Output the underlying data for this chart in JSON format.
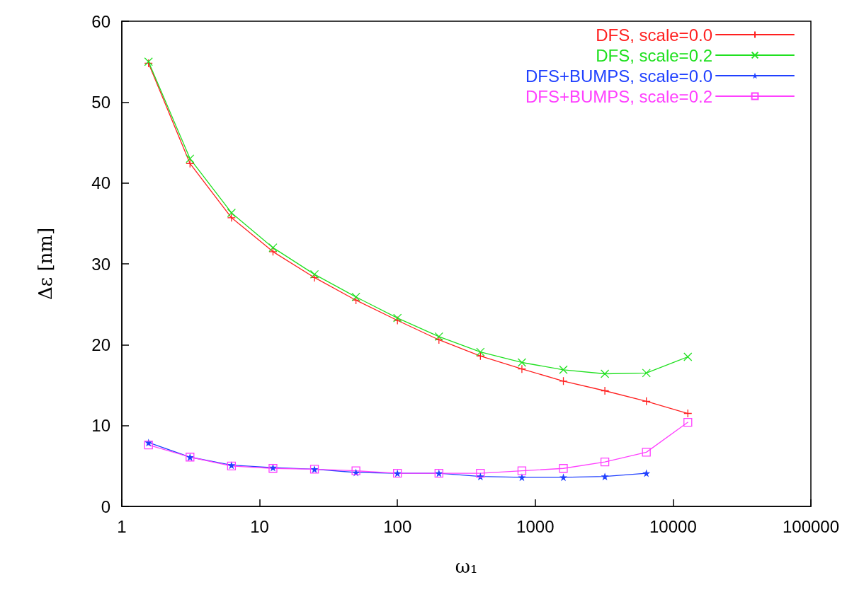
{
  "chart_data": {
    "type": "line",
    "xlabel": "ω₁",
    "ylabel": "Δε [nm]",
    "log": "x",
    "xlim": [
      1,
      100000
    ],
    "xticks": [
      1,
      10,
      100,
      1000,
      10000,
      100000
    ],
    "ylim": [
      0,
      60
    ],
    "yticks": [
      0,
      10,
      20,
      30,
      40,
      50,
      60
    ],
    "grid": false,
    "legend": "top right",
    "x": [
      1.5625,
      3.125,
      6.25,
      12.5,
      25,
      50,
      100,
      200,
      400,
      800,
      1600,
      3200,
      6400,
      12800
    ],
    "series": [
      {
        "name": "DFS, scale=0.0",
        "color": "#ff2020",
        "marker": "plus",
        "values": [
          54.8,
          42.4,
          35.7,
          31.5,
          28.3,
          25.5,
          23.0,
          20.6,
          18.6,
          17.0,
          15.5,
          14.3,
          13.0,
          11.5
        ]
      },
      {
        "name": "DFS, scale=0.2",
        "color": "#20e020",
        "marker": "cross",
        "values": [
          55.0,
          43.0,
          36.3,
          32.0,
          28.7,
          25.9,
          23.3,
          21.0,
          19.1,
          17.8,
          16.9,
          16.4,
          16.5,
          18.5
        ]
      },
      {
        "name": "DFS+BUMPS, scale=0.0",
        "color": "#2040ff",
        "marker": "star",
        "values": [
          7.9,
          6.1,
          5.1,
          4.8,
          4.6,
          4.2,
          4.1,
          4.1,
          3.7,
          3.6,
          3.6,
          3.7,
          4.1,
          null
        ]
      },
      {
        "name": "DFS+BUMPS, scale=0.2",
        "color": "#ff40ff",
        "marker": "square",
        "values": [
          7.6,
          6.1,
          5.0,
          4.7,
          4.6,
          4.4,
          4.1,
          4.1,
          4.1,
          4.4,
          4.7,
          5.5,
          6.7,
          10.4
        ]
      }
    ]
  }
}
